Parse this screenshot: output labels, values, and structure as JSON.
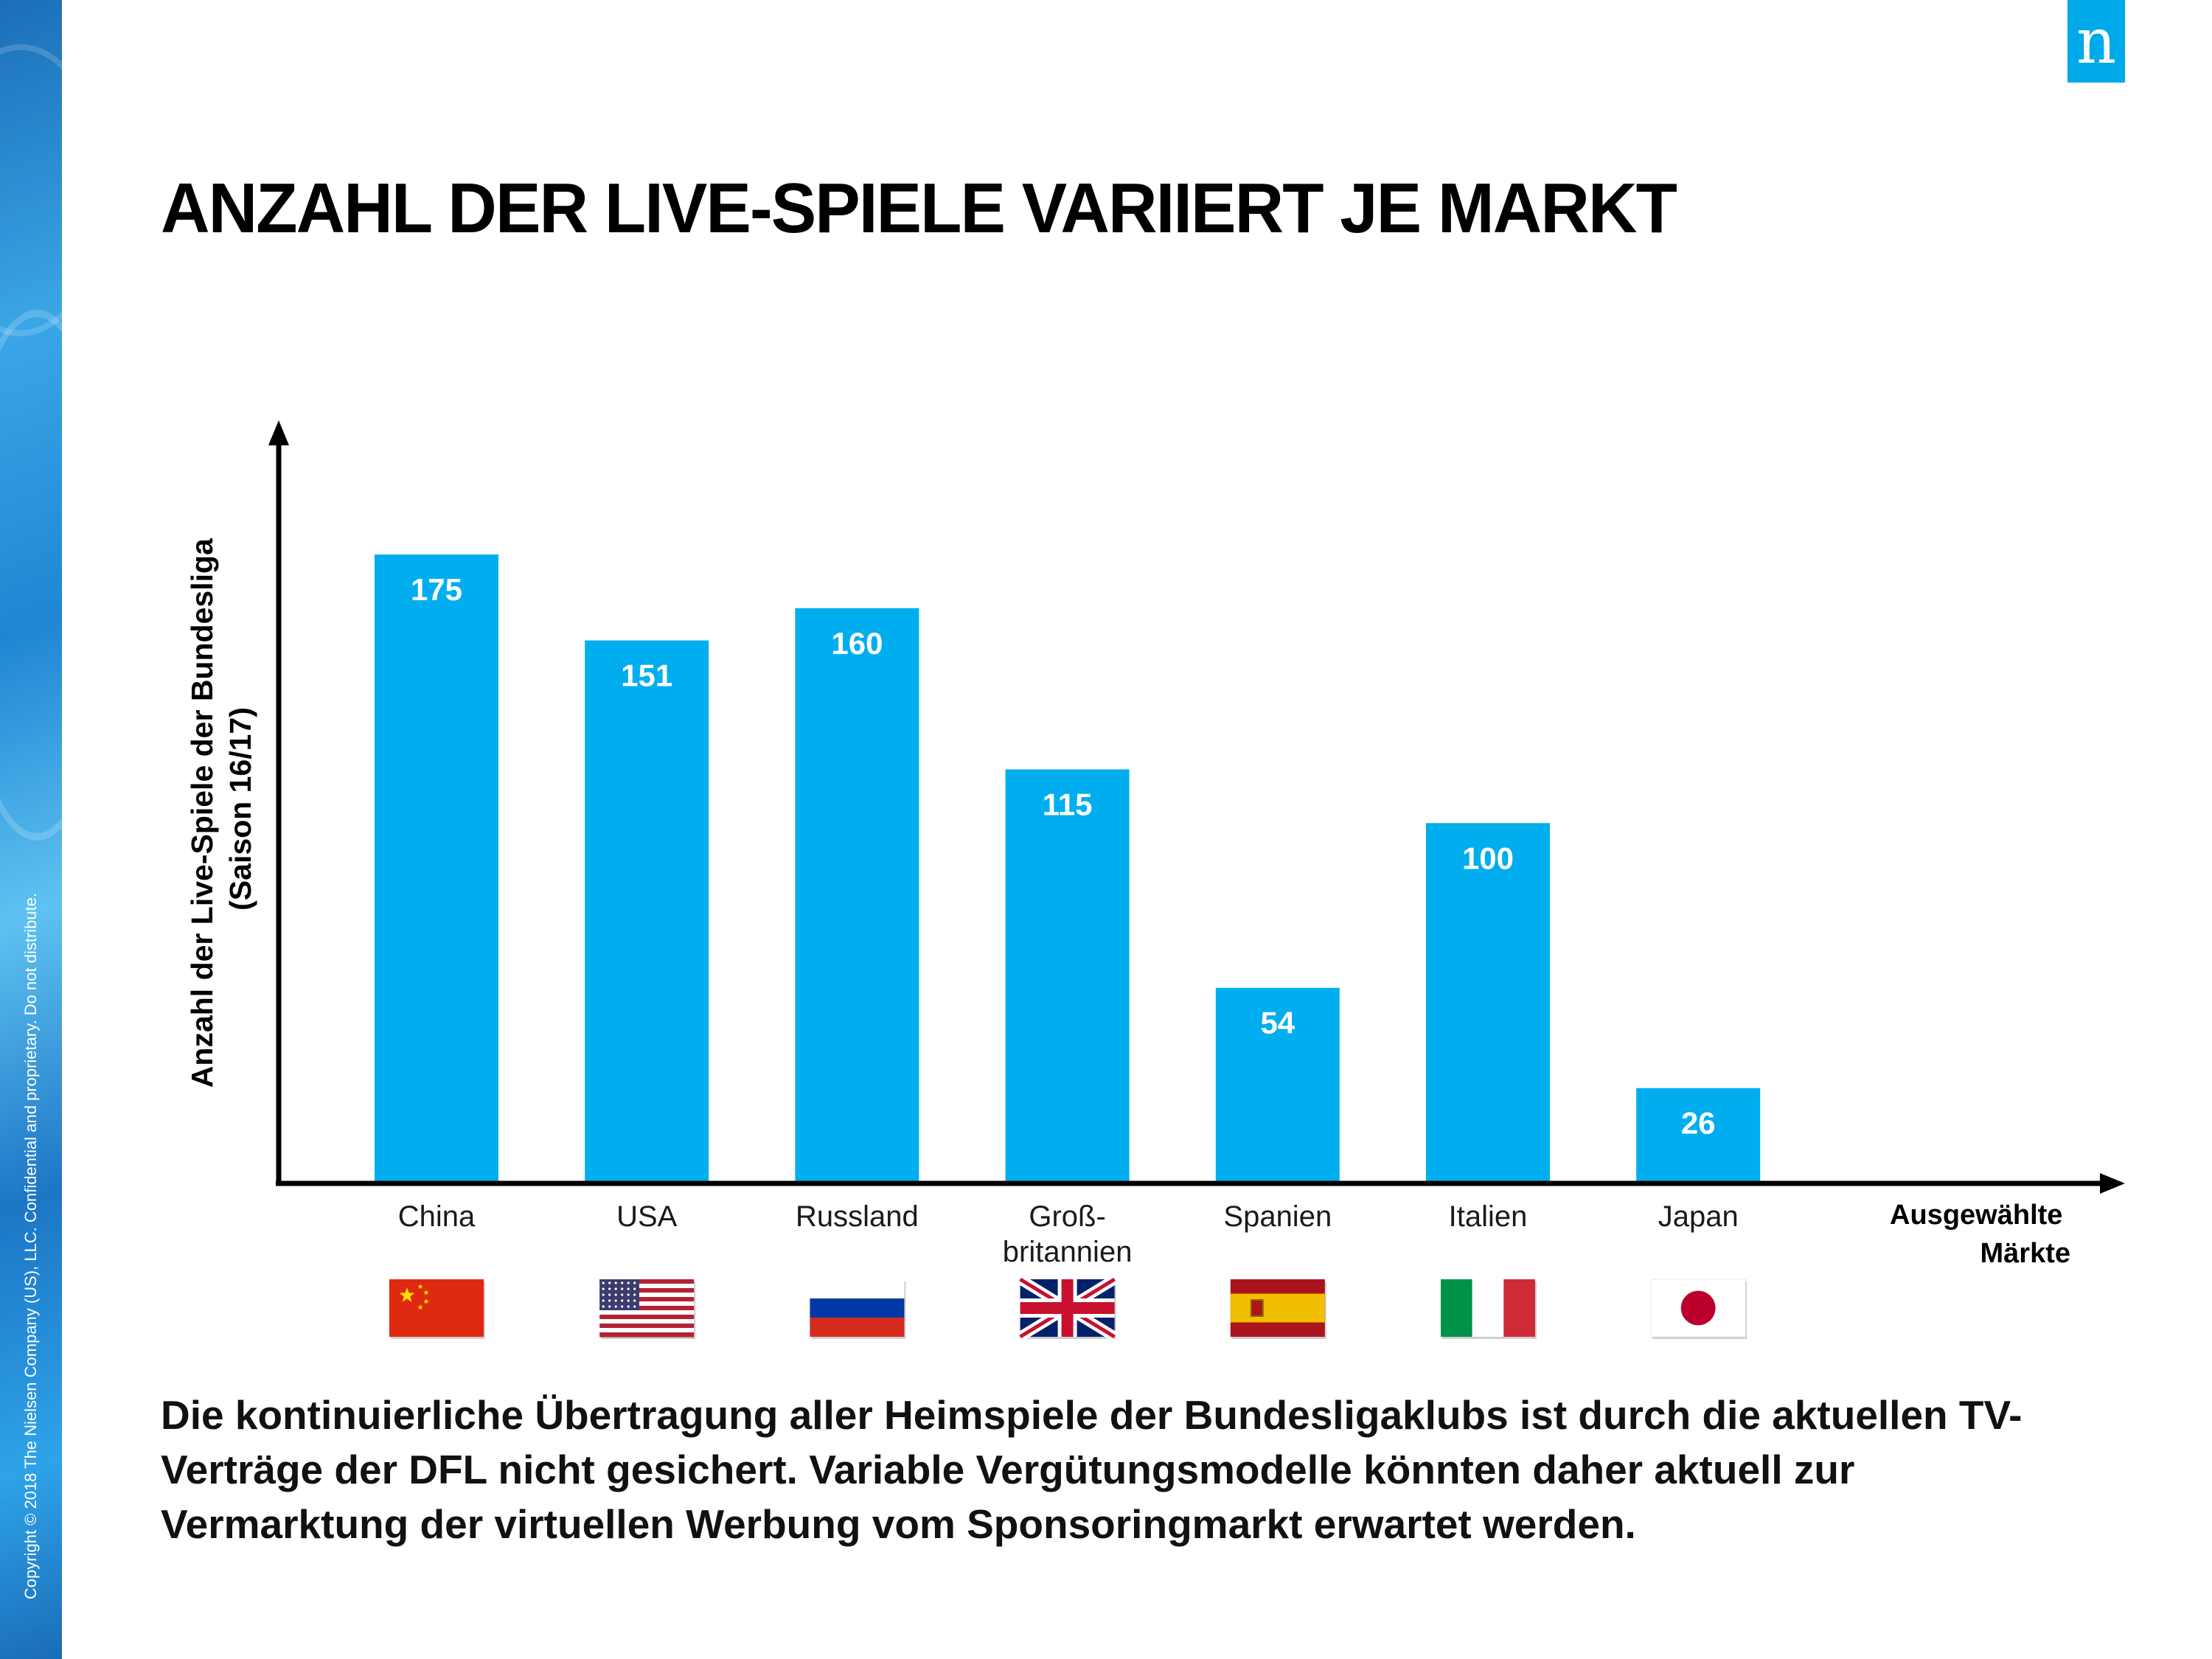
{
  "copyright": "Copyright © 2018 The Nielsen Company (US), LLC. Confidential and proprietary. Do not distribute.",
  "logo": {
    "letter": "n",
    "color": "#00a9ea"
  },
  "title": "ANZAHL DER LIVE-SPIELE VARIIERT JE MARKT",
  "chart_data": {
    "type": "bar",
    "title": "",
    "categories": [
      "China",
      "USA",
      "Russland",
      "Groß- britannien",
      "Spanien",
      "Italien",
      "Japan"
    ],
    "category_lines": [
      [
        "China"
      ],
      [
        "USA"
      ],
      [
        "Russland"
      ],
      [
        "Groß-",
        "britannien"
      ],
      [
        "Spanien"
      ],
      [
        "Italien"
      ],
      [
        "Japan"
      ]
    ],
    "values": [
      175,
      151,
      160,
      115,
      54,
      100,
      26
    ],
    "value_labels": [
      "175",
      "151",
      "160",
      "115",
      "54",
      "100",
      "26"
    ],
    "xlabel": "Ausgewählte Märkte",
    "xlabel_lines": [
      "Ausgewählte",
      "Märkte"
    ],
    "ylabel": "Anzahl der Live-Spiele der Bundesliga (Saison 16/17)",
    "ylabel_lines": [
      "Anzahl der Live-Spiele der Bundesliga",
      "(Saison 16/17)"
    ],
    "ylim": [
      0,
      210
    ],
    "grid": false,
    "legend": "none",
    "bar_color": "#00aeef",
    "flags": [
      "china-flag",
      "usa-flag",
      "russia-flag",
      "uk-flag",
      "spain-flag",
      "italy-flag",
      "japan-flag"
    ]
  },
  "footer": "Die kontinuierliche Übertragung aller Heimspiele der Bundesligaklubs ist durch die aktuellen TV-Verträge der DFL nicht gesichert. Variable Vergütungsmodelle könnten daher aktuell zur Vermarktung der virtuellen Werbung vom Sponsoringmarkt erwartet werden."
}
